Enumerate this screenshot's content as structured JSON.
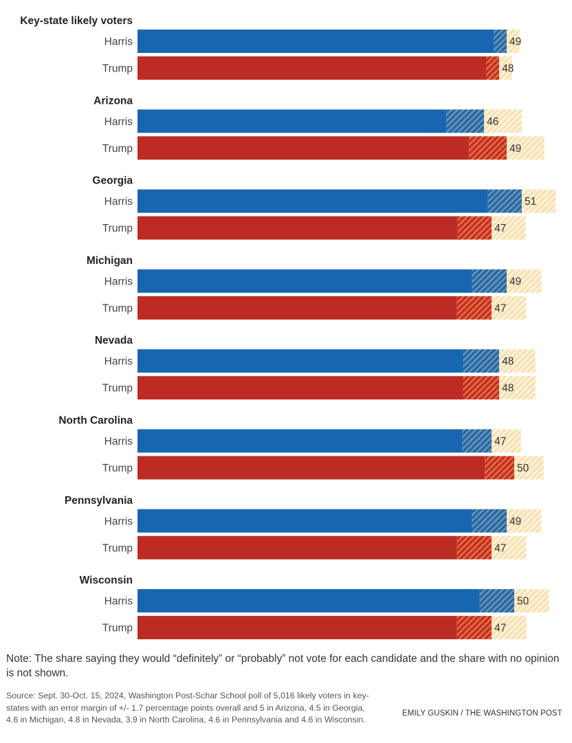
{
  "chart_data": {
    "type": "bar",
    "orientation": "horizontal",
    "title": "",
    "xlabel": "",
    "ylabel": "",
    "xlim": [
      0,
      55
    ],
    "grid": false,
    "legend": "none",
    "encoding": {
      "solid": "value minus margin of error",
      "dark_hatched": "margin of error below value",
      "light_hatched": "margin of error above value"
    },
    "colors": {
      "Harris": "#1866b0",
      "Harris_hatch": "#6b8fa8",
      "Trump": "#bd2b25",
      "Trump_hatch": "#e4683c",
      "moe_light_a": "#fdf3dd",
      "moe_light_b": "#f8dfae"
    },
    "groups": [
      {
        "name": "Key-state likely voters",
        "moe": 1.7,
        "series": [
          {
            "name": "Harris",
            "value": 49
          },
          {
            "name": "Trump",
            "value": 48
          }
        ]
      },
      {
        "name": "Arizona",
        "moe": 5,
        "series": [
          {
            "name": "Harris",
            "value": 46
          },
          {
            "name": "Trump",
            "value": 49
          }
        ]
      },
      {
        "name": "Georgia",
        "moe": 4.5,
        "series": [
          {
            "name": "Harris",
            "value": 51
          },
          {
            "name": "Trump",
            "value": 47
          }
        ]
      },
      {
        "name": "Michigan",
        "moe": 4.6,
        "series": [
          {
            "name": "Harris",
            "value": 49
          },
          {
            "name": "Trump",
            "value": 47
          }
        ]
      },
      {
        "name": "Nevada",
        "moe": 4.8,
        "series": [
          {
            "name": "Harris",
            "value": 48
          },
          {
            "name": "Trump",
            "value": 48
          }
        ]
      },
      {
        "name": "North Carolina",
        "moe": 3.9,
        "series": [
          {
            "name": "Harris",
            "value": 47
          },
          {
            "name": "Trump",
            "value": 50
          }
        ]
      },
      {
        "name": "Pennsylvania",
        "moe": 4.6,
        "series": [
          {
            "name": "Harris",
            "value": 49
          },
          {
            "name": "Trump",
            "value": 47
          }
        ]
      },
      {
        "name": "Wisconsin",
        "moe": 4.6,
        "series": [
          {
            "name": "Harris",
            "value": 50
          },
          {
            "name": "Trump",
            "value": 47
          }
        ]
      }
    ]
  },
  "footer": {
    "note": "Note: The share saying they would “definitely” or “probably” not vote for each candidate and the share with no opinion is not shown.",
    "source": "Source: Sept. 30-Oct. 15, 2024, Washington Post-Schar School poll of 5,016 likely voters in key-states with an error margin of +/- 1.7 percentage points overall and 5 in Arizona, 4.5 in Georgia, 4.6 in Michigan, 4.8 in Nevada, 3.9 in North Carolina, 4.6 in Pennsylvania and 4.6 in Wisconsin.",
    "credit": "EMILY GUSKIN / THE WASHINGTON POST"
  }
}
